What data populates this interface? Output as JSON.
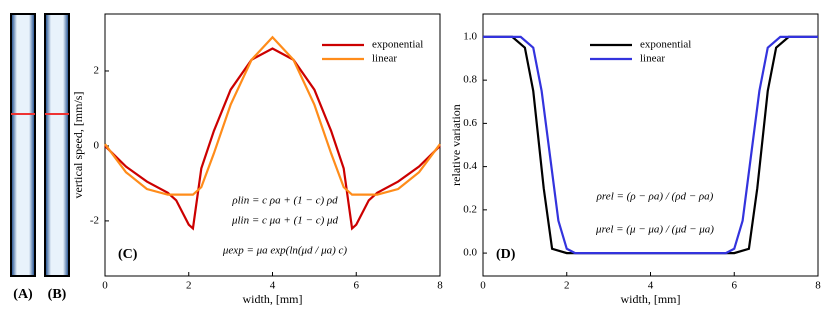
{
  "panels": [
    {
      "label": "(A)"
    },
    {
      "label": "(B)"
    }
  ],
  "chart_data": [
    {
      "type": "line",
      "xlabel": "width, [mm]",
      "ylabel": "vertical speed, [mm/s]",
      "xlim": [
        0,
        8
      ],
      "xticks": [
        0,
        2,
        4,
        6,
        8
      ],
      "ylim": [
        -3.47,
        3.52
      ],
      "yticks": [
        -2,
        0,
        2
      ],
      "legend": "upper right",
      "annotations": [
        "(C)",
        "ρlin = c ρa + (1 − c) ρd",
        "μlin = c μa + (1 − c) μd",
        "μexp = μa exp(ln(μd / μa) c)"
      ],
      "series": [
        {
          "name": "exponential",
          "color": "#cc0000",
          "x": [
            0,
            0.5,
            1,
            1.5,
            1.7,
            2,
            2.1,
            2.3,
            2.6,
            3,
            3.5,
            4,
            4.5,
            5,
            5.4,
            5.7,
            5.9,
            6,
            6.3,
            6.5,
            7,
            7.5,
            8
          ],
          "values": [
            0,
            -0.55,
            -0.95,
            -1.25,
            -1.45,
            -2.1,
            -2.2,
            -0.6,
            0.4,
            1.5,
            2.3,
            2.6,
            2.3,
            1.5,
            0.4,
            -0.6,
            -2.2,
            -2.1,
            -1.45,
            -1.25,
            -0.95,
            -0.55,
            0
          ]
        },
        {
          "name": "linear",
          "color": "#ff8c1a",
          "x": [
            0,
            0.5,
            1,
            1.5,
            1.7,
            2,
            2.1,
            2.3,
            2.6,
            3,
            3.5,
            4,
            4.5,
            5,
            5.4,
            5.7,
            5.9,
            6,
            6.3,
            6.5,
            7,
            7.5,
            8
          ],
          "values": [
            0.05,
            -0.7,
            -1.15,
            -1.3,
            -1.3,
            -1.3,
            -1.3,
            -1.1,
            -0.2,
            1.1,
            2.3,
            2.9,
            2.3,
            1.1,
            -0.2,
            -1.1,
            -1.3,
            -1.3,
            -1.3,
            -1.3,
            -1.15,
            -0.7,
            0.05
          ]
        }
      ]
    },
    {
      "type": "line",
      "xlabel": "width, [mm]",
      "ylabel": "relative variation",
      "xlim": [
        0,
        8
      ],
      "xticks": [
        0,
        2,
        4,
        6,
        8
      ],
      "ylim": [
        -0.106,
        1.106
      ],
      "yticks": [
        {
          "value": 0,
          "label": "0.0"
        },
        {
          "value": 0.2,
          "label": "0.2"
        },
        {
          "value": 0.4,
          "label": "0.4"
        },
        {
          "value": 0.6,
          "label": "0.6"
        },
        {
          "value": 0.8,
          "label": "0.8"
        },
        {
          "value": 1,
          "label": "1.0"
        }
      ],
      "legend": "upper center",
      "annotations": [
        "(D)",
        "ρrel = (ρ − ρa) / (ρd − ρa)",
        "μrel = (μ − μa) / (μd − μa)"
      ],
      "series": [
        {
          "name": "exponential",
          "color": "#000000",
          "x": [
            0,
            0.7,
            1,
            1.2,
            1.45,
            1.65,
            2,
            6,
            6.35,
            6.55,
            6.8,
            7,
            7.3,
            8
          ],
          "values": [
            1,
            1,
            0.95,
            0.75,
            0.3,
            0.02,
            0,
            0,
            0.02,
            0.3,
            0.75,
            0.95,
            1,
            1
          ]
        },
        {
          "name": "linear",
          "color": "#3333dd",
          "x": [
            0,
            0.9,
            1.2,
            1.4,
            1.6,
            1.8,
            2,
            2.2,
            5.8,
            6,
            6.2,
            6.4,
            6.6,
            6.8,
            7.1,
            8
          ],
          "values": [
            1,
            1,
            0.95,
            0.75,
            0.45,
            0.15,
            0.02,
            0,
            0,
            0.02,
            0.15,
            0.45,
            0.75,
            0.95,
            1,
            1
          ]
        }
      ]
    }
  ]
}
